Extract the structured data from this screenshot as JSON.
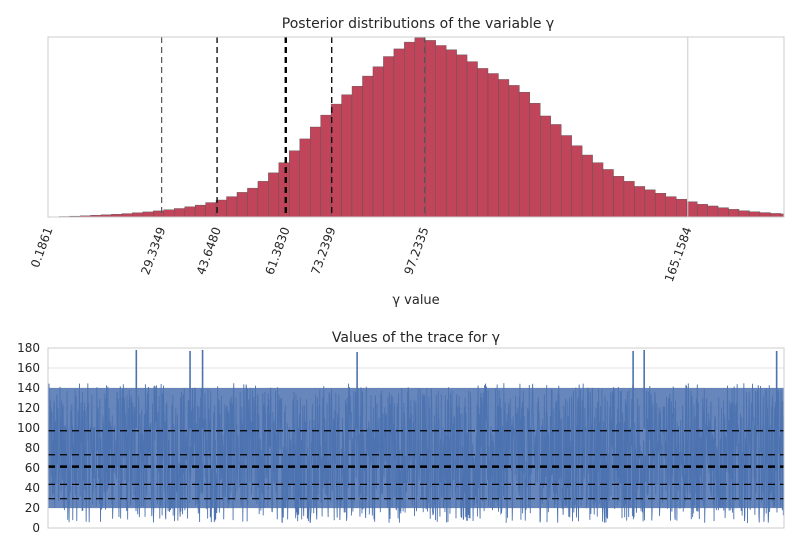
{
  "chart_data": [
    {
      "type": "bar",
      "chart_kind": "histogram",
      "title": "Posterior distributions of the variable γ",
      "xlabel": "γ value",
      "ylabel": "",
      "xlim": [
        0,
        190
      ],
      "color": "#C0445A",
      "edge_color": "#555555",
      "grid": false,
      "y_ticks_shown": false,
      "bin_width": 2.7,
      "bin_start": 0.1861,
      "counts": [
        0,
        0.3,
        0.5,
        0.7,
        1,
        1.3,
        1.6,
        2,
        2.5,
        3,
        3.6,
        4.3,
        5,
        6,
        7,
        8.5,
        10,
        12,
        14.5,
        17,
        21,
        26,
        32,
        39,
        46,
        53,
        60,
        66.5,
        72,
        77,
        83,
        88.5,
        94.5,
        99,
        103,
        105.5,
        104,
        101,
        98.5,
        95.5,
        91.5,
        87.5,
        84.5,
        81,
        77.5,
        73.5,
        67,
        59.5,
        54.5,
        48,
        42,
        36.5,
        32,
        28,
        24,
        21,
        18,
        16,
        14,
        12,
        10.5,
        9,
        7.5,
        6.5,
        5.5,
        4.5,
        3.7,
        3.1,
        2.6,
        2.1,
        1.8,
        1.5,
        1.3,
        1.2,
        1,
        0.9,
        0.8,
        0.7,
        0.6,
        0.5,
        0.5,
        0.4,
        0.4,
        0.3,
        0.3,
        0.3,
        0.2,
        0.2,
        0.2,
        0.1,
        0.1,
        0.1,
        0.1,
        0.1,
        0.1,
        0.1,
        0.1,
        0.1,
        0.1,
        0.1,
        0.1,
        0.1,
        0.1,
        0.1,
        0.1,
        0.1,
        0.1,
        0.1,
        0.1,
        0.1,
        0.1,
        0.1,
        0.1,
        0.1,
        0.1,
        0.1,
        0.1,
        0.1,
        0.1,
        0.1,
        0.1,
        0.1
      ],
      "ylim": [
        0,
        106
      ],
      "xticks": [
        {
          "value": 0.1861,
          "label": "0.1861"
        },
        {
          "value": 29.3349,
          "label": "29.3349"
        },
        {
          "value": 43.648,
          "label": "43.6480"
        },
        {
          "value": 61.383,
          "label": "61.3830"
        },
        {
          "value": 73.2399,
          "label": "73.2399"
        },
        {
          "value": 97.2335,
          "label": "97.2335"
        },
        {
          "value": 165.1584,
          "label": "165.1584"
        }
      ],
      "vlines": [
        {
          "value": 29.3349,
          "style": "dashed-gray"
        },
        {
          "value": 43.648,
          "style": "dashed-black"
        },
        {
          "value": 61.383,
          "style": "dashed-black-bold"
        },
        {
          "value": 73.2399,
          "style": "dashed-black"
        },
        {
          "value": 97.2335,
          "style": "dashed-gray"
        },
        {
          "value": 165.1584,
          "style": "solid-light"
        }
      ]
    },
    {
      "type": "line",
      "chart_kind": "trace",
      "title": "Values of the trace for γ",
      "xlabel": "",
      "ylabel": "",
      "ylim": [
        0,
        180
      ],
      "yticks": [
        0,
        20,
        40,
        60,
        80,
        100,
        120,
        140,
        160,
        180
      ],
      "grid": true,
      "color": "#4C72B0",
      "hlines": [
        {
          "value": 29.3349,
          "style": "dashed"
        },
        {
          "value": 43.648,
          "style": "dashed"
        },
        {
          "value": 61.383,
          "style": "dashed-bold"
        },
        {
          "value": 73.2399,
          "style": "dashed"
        },
        {
          "value": 97.2335,
          "style": "dashed"
        }
      ],
      "band": {
        "low": 5,
        "high": 145,
        "median": 61.383
      },
      "spikes": [
        {
          "x": 0.12,
          "value": 178
        },
        {
          "x": 0.193,
          "value": 177
        },
        {
          "x": 0.21,
          "value": 178
        },
        {
          "x": 0.42,
          "value": 176
        },
        {
          "x": 0.795,
          "value": 177
        },
        {
          "x": 0.81,
          "value": 178
        },
        {
          "x": 0.99,
          "value": 177
        }
      ]
    }
  ]
}
